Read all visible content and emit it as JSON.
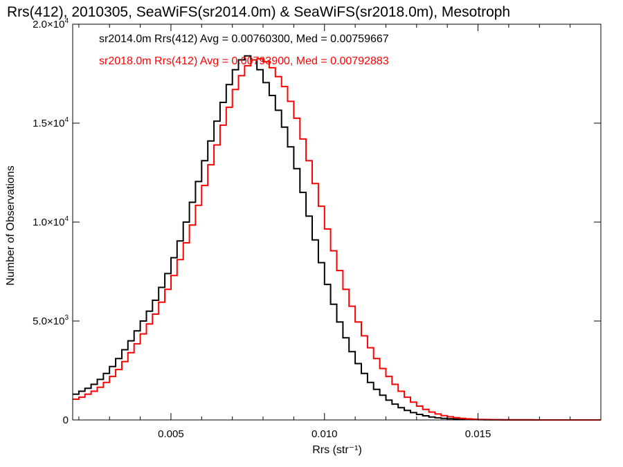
{
  "chart_data": {
    "type": "line",
    "title": "Rrs(412), 2010305, SeaWiFS(sr2014.0m) & SeaWiFS(sr2018.0m), Mesotroph",
    "xlabel": "Rrs (str⁻¹)",
    "ylabel": "Number of Observations",
    "xlim": [
      0.0018,
      0.019
    ],
    "ylim": [
      0,
      20000
    ],
    "xticks": [
      {
        "value": 0.005,
        "label": "0.005"
      },
      {
        "value": 0.01,
        "label": "0.010"
      },
      {
        "value": 0.015,
        "label": "0.015"
      }
    ],
    "yticks": [
      {
        "value": 0,
        "mant": "0",
        "exp": ""
      },
      {
        "value": 5000,
        "mant": "5.0×10",
        "exp": "3"
      },
      {
        "value": 10000,
        "mant": "1.0×10",
        "exp": "4"
      },
      {
        "value": 15000,
        "mant": "1.5×10",
        "exp": "4"
      },
      {
        "value": 20000,
        "mant": "2.0×10",
        "exp": "4"
      }
    ],
    "grid": false,
    "legend_position": "top-left",
    "series": [
      {
        "name": "sr2014.0m Rrs(412) Avg = 0.00760300, Med = 0.00759667",
        "color": "#000000",
        "x": [
          0.0018,
          0.002,
          0.0022,
          0.0024,
          0.0026,
          0.0028,
          0.003,
          0.0032,
          0.0034,
          0.0036,
          0.0038,
          0.004,
          0.0042,
          0.0044,
          0.0046,
          0.0048,
          0.005,
          0.0052,
          0.0054,
          0.0056,
          0.0058,
          0.006,
          0.0062,
          0.0064,
          0.0066,
          0.0068,
          0.007,
          0.0072,
          0.0074,
          0.0076,
          0.0078,
          0.008,
          0.0082,
          0.0084,
          0.0086,
          0.0088,
          0.009,
          0.0092,
          0.0094,
          0.0096,
          0.0098,
          0.01,
          0.0102,
          0.0104,
          0.0106,
          0.0108,
          0.011,
          0.0112,
          0.0114,
          0.0116,
          0.0118,
          0.012,
          0.0122,
          0.0124,
          0.0126,
          0.0128,
          0.013,
          0.0132,
          0.0134,
          0.0136,
          0.0138,
          0.014,
          0.0142,
          0.0144,
          0.0146,
          0.0148,
          0.015,
          0.0152,
          0.0154,
          0.0156,
          0.0158,
          0.016,
          0.0162,
          0.0164,
          0.0166,
          0.0168,
          0.017,
          0.0172,
          0.0174,
          0.0176,
          0.0178,
          0.018,
          0.0182,
          0.0184,
          0.0186,
          0.0188
        ],
        "y": [
          1300,
          1450,
          1600,
          1800,
          2050,
          2350,
          2700,
          3100,
          3550,
          4000,
          4500,
          5000,
          5500,
          6050,
          6700,
          7400,
          8200,
          9050,
          10000,
          11000,
          12050,
          13100,
          14100,
          15100,
          16050,
          16950,
          17700,
          18200,
          18400,
          18200,
          17700,
          17050,
          16400,
          15650,
          14800,
          13800,
          12700,
          11500,
          10300,
          9100,
          7950,
          6850,
          5850,
          4950,
          4150,
          3450,
          2850,
          2350,
          1900,
          1550,
          1250,
          1000,
          800,
          620,
          480,
          370,
          280,
          210,
          150,
          110,
          80,
          60,
          45,
          35,
          25,
          20,
          15,
          10,
          8,
          6,
          5,
          4,
          3,
          2,
          2,
          1,
          1,
          1,
          1,
          0,
          0,
          0,
          0,
          0,
          0,
          0
        ]
      },
      {
        "name": "sr2018.0m Rrs(412) Avg = 0.00793900, Med = 0.00792883",
        "color": "#ff0000",
        "x": [
          0.0018,
          0.002,
          0.0022,
          0.0024,
          0.0026,
          0.0028,
          0.003,
          0.0032,
          0.0034,
          0.0036,
          0.0038,
          0.004,
          0.0042,
          0.0044,
          0.0046,
          0.0048,
          0.005,
          0.0052,
          0.0054,
          0.0056,
          0.0058,
          0.006,
          0.0062,
          0.0064,
          0.0066,
          0.0068,
          0.007,
          0.0072,
          0.0074,
          0.0076,
          0.0078,
          0.008,
          0.0082,
          0.0084,
          0.0086,
          0.0088,
          0.009,
          0.0092,
          0.0094,
          0.0096,
          0.0098,
          0.01,
          0.0102,
          0.0104,
          0.0106,
          0.0108,
          0.011,
          0.0112,
          0.0114,
          0.0116,
          0.0118,
          0.012,
          0.0122,
          0.0124,
          0.0126,
          0.0128,
          0.013,
          0.0132,
          0.0134,
          0.0136,
          0.0138,
          0.014,
          0.0142,
          0.0144,
          0.0146,
          0.0148,
          0.015,
          0.0152,
          0.0154,
          0.0156,
          0.0158,
          0.016,
          0.0162,
          0.0164,
          0.0166,
          0.0168,
          0.017,
          0.0172,
          0.0174,
          0.0176,
          0.0178,
          0.018,
          0.0182,
          0.0184,
          0.0186,
          0.0188
        ],
        "y": [
          1050,
          1150,
          1300,
          1450,
          1650,
          1900,
          2200,
          2550,
          2950,
          3400,
          3850,
          4350,
          4850,
          5350,
          5950,
          6600,
          7300,
          8100,
          8950,
          9850,
          10850,
          11850,
          12900,
          13900,
          14900,
          15800,
          16700,
          17400,
          17900,
          18200,
          18250,
          18100,
          17800,
          17350,
          16850,
          16100,
          15250,
          14200,
          13100,
          11950,
          10800,
          9650,
          8550,
          7550,
          6600,
          5750,
          4950,
          4250,
          3650,
          3100,
          2600,
          2200,
          1800,
          1450,
          1150,
          900,
          700,
          530,
          400,
          300,
          220,
          160,
          115,
          80,
          55,
          40,
          28,
          20,
          14,
          10,
          7,
          5,
          4,
          3,
          2,
          2,
          1,
          1,
          1,
          0,
          0,
          0,
          0,
          0,
          0,
          0
        ]
      }
    ]
  }
}
